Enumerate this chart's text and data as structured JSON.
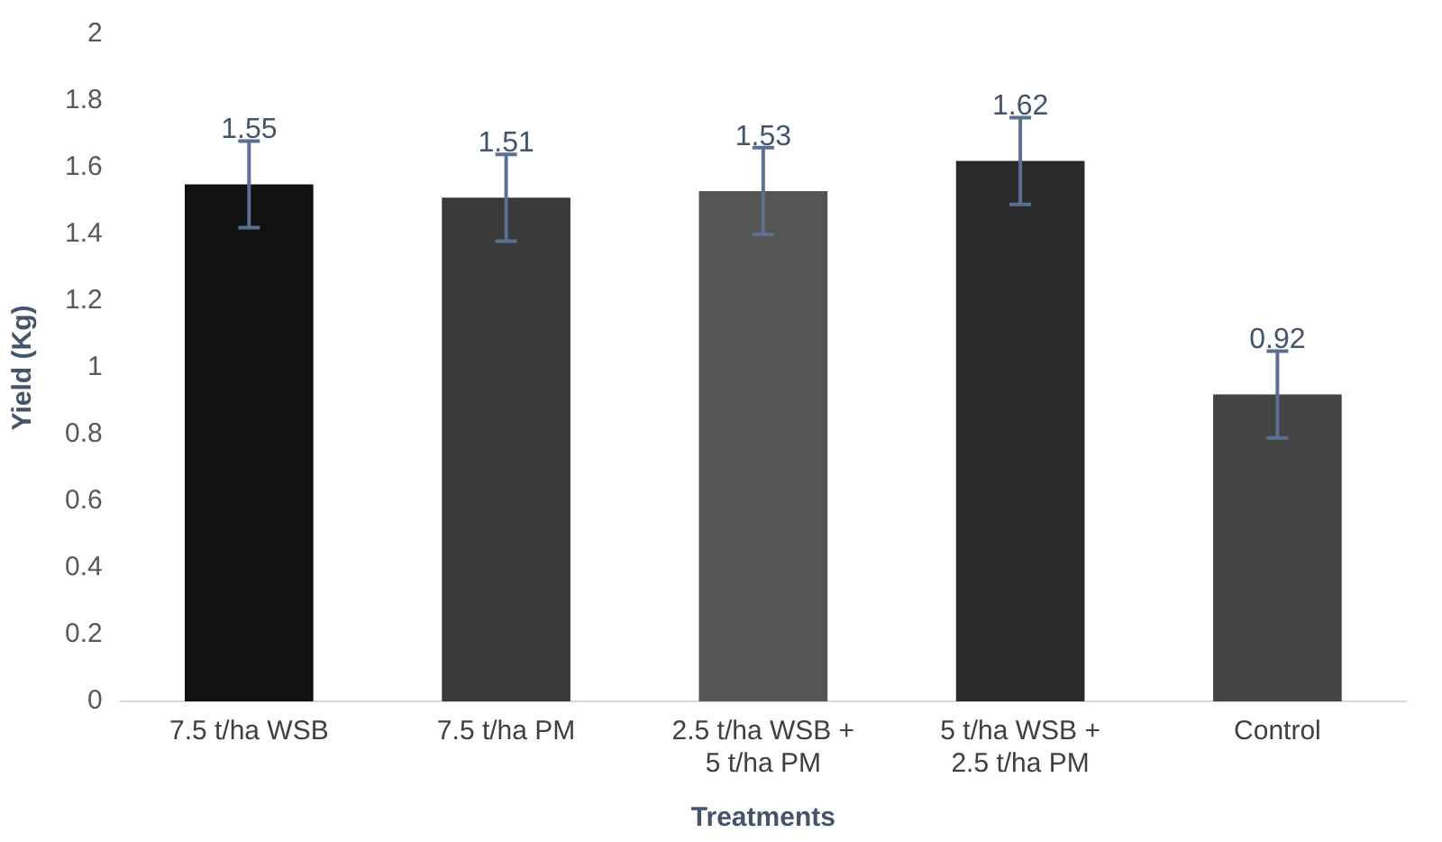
{
  "chart_data": {
    "type": "bar",
    "xlabel": "Treatments",
    "ylabel": "Yield (Kg)",
    "categories": [
      "7.5 t/ha WSB",
      "7.5 t/ha PM",
      "2.5 t/ha WSB + 5 t/ha PM",
      "5 t/ha WSB + 2.5 t/ha PM",
      "Control"
    ],
    "values": [
      1.55,
      1.51,
      1.53,
      1.62,
      0.92
    ],
    "errors": [
      0.13,
      0.13,
      0.13,
      0.13,
      0.13
    ],
    "colors": [
      "#111111",
      "#3a3a3a",
      "#555555",
      "#2a2a2a",
      "#444444"
    ],
    "ylim": [
      0,
      2
    ],
    "yticks": [
      0,
      0.2,
      0.4,
      0.6,
      0.8,
      1,
      1.2,
      1.4,
      1.6,
      1.8,
      2
    ],
    "data_labels": true,
    "grid": false,
    "legend": false
  }
}
